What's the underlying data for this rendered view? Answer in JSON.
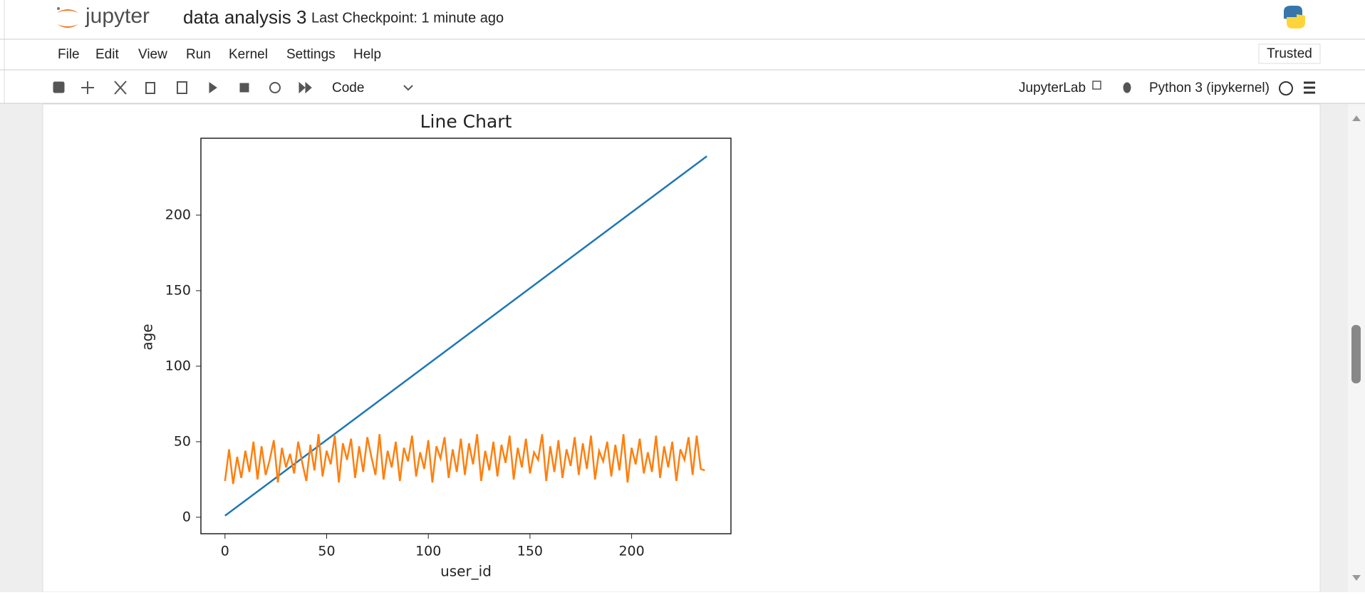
{
  "header": {
    "logo": "jupyter",
    "notebook_name": "data analysis 3",
    "checkpoint": "Last Checkpoint: 1 minute ago"
  },
  "menu": [
    "File",
    "Edit",
    "View",
    "Run",
    "Kernel",
    "Settings",
    "Help"
  ],
  "trusted": "Trusted",
  "toolbar": {
    "cell_type": "Code",
    "app_link": "JupyterLab",
    "kernel": "Python 3 (ipykernel)"
  },
  "chart_data": {
    "type": "line",
    "title": "Line Chart",
    "x_label": "user_id",
    "y_label": "age",
    "xlim": [
      -11.85,
      248.85
    ],
    "ylim": [
      -10.9,
      250.9
    ],
    "xticks": [
      0,
      50,
      100,
      150,
      200
    ],
    "yticks": [
      0,
      50,
      100,
      150,
      200
    ],
    "series": [
      {
        "color": "#1f77b4",
        "x": [
          0,
          237
        ],
        "values": [
          1,
          239
        ]
      },
      {
        "color": "#ff7f0e",
        "x": [
          0,
          2,
          4,
          6,
          8,
          10,
          12,
          14,
          16,
          18,
          20,
          22,
          24,
          26,
          28,
          30,
          32,
          34,
          36,
          38,
          40,
          42,
          44,
          46,
          48,
          50,
          52,
          54,
          56,
          58,
          60,
          62,
          64,
          66,
          68,
          70,
          72,
          74,
          76,
          78,
          80,
          82,
          84,
          86,
          88,
          90,
          92,
          94,
          96,
          98,
          100,
          102,
          104,
          106,
          108,
          110,
          112,
          114,
          116,
          118,
          120,
          122,
          124,
          126,
          128,
          130,
          132,
          134,
          136,
          138,
          140,
          142,
          144,
          146,
          148,
          150,
          152,
          154,
          156,
          158,
          160,
          162,
          164,
          166,
          168,
          170,
          172,
          174,
          176,
          178,
          180,
          182,
          184,
          186,
          188,
          190,
          192,
          194,
          196,
          198,
          200,
          202,
          204,
          206,
          208,
          210,
          212,
          214,
          216,
          218,
          220,
          222,
          224,
          226,
          228,
          230,
          232,
          234,
          236
        ],
        "values": [
          24,
          45,
          22,
          40,
          26,
          44,
          30,
          50,
          25,
          47,
          28,
          38,
          51,
          23,
          46,
          33,
          42,
          29,
          50,
          36,
          24,
          48,
          31,
          55,
          27,
          44,
          35,
          54,
          23,
          49,
          38,
          52,
          26,
          47,
          30,
          53,
          40,
          28,
          55,
          25,
          44,
          33,
          50,
          24,
          46,
          37,
          54,
          27,
          43,
          32,
          51,
          23,
          47,
          39,
          53,
          26,
          45,
          30,
          52,
          28,
          49,
          35,
          55,
          24,
          44,
          31,
          50,
          27,
          48,
          36,
          54,
          25,
          46,
          33,
          52,
          29,
          43,
          38,
          55,
          24,
          47,
          30,
          51,
          26,
          45,
          34,
          53,
          28,
          49,
          32,
          54,
          25,
          44,
          37,
          50,
          27,
          48,
          31,
          55,
          23,
          46,
          35,
          52,
          29,
          43,
          30,
          54,
          26,
          47,
          33,
          50,
          24,
          45,
          38,
          53,
          28,
          54,
          32,
          31
        ]
      }
    ]
  }
}
